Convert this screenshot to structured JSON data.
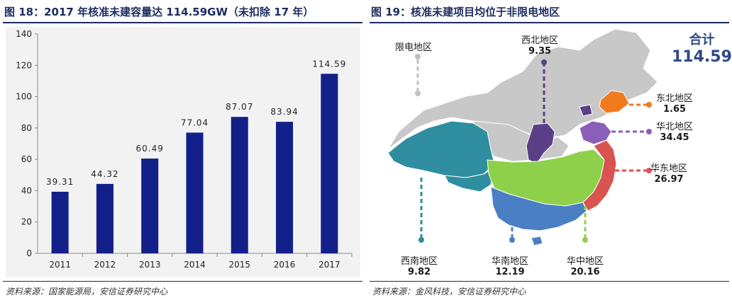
{
  "left": {
    "title": "图 18：2017 年核准未建容量达 114.59GW（未扣除 17 年）",
    "source": "资料来源：国家能源局，安信证券研究中心"
  },
  "right": {
    "title": "图 19：核准未建项目均位于非限电地区",
    "source": "资料来源：金风科技，安信证券研究中心",
    "total_label": "合计",
    "total_value": "114.59",
    "regions": [
      {
        "name": "限电地区",
        "value": "",
        "color": "#c8c8c8"
      },
      {
        "name": "西北地区",
        "value": "9.35",
        "color": "#5b3f86"
      },
      {
        "name": "东北地区",
        "value": "1.65",
        "color": "#f07a1c"
      },
      {
        "name": "华北地区",
        "value": "34.45",
        "color": "#8a5fb8"
      },
      {
        "name": "华东地区",
        "value": "26.97",
        "color": "#d9534f"
      },
      {
        "name": "华中地区",
        "value": "20.16",
        "color": "#8ed04a"
      },
      {
        "name": "华南地区",
        "value": "12.19",
        "color": "#4b7fc4"
      },
      {
        "name": "西南地区",
        "value": "9.82",
        "color": "#2e8ea0"
      }
    ]
  },
  "chart_data": {
    "type": "bar",
    "categories": [
      "2011",
      "2012",
      "2013",
      "2014",
      "2015",
      "2016",
      "2017"
    ],
    "values": [
      39.31,
      44.32,
      60.49,
      77.04,
      87.07,
      83.94,
      114.59
    ],
    "data_labels": [
      "39.31",
      "44.32",
      "60.49",
      "77.04",
      "87.07",
      "83.94",
      "114.59"
    ],
    "title": "",
    "xlabel": "",
    "ylabel": "",
    "ylim": [
      0,
      140
    ],
    "yticks": [
      0,
      20,
      40,
      60,
      80,
      100,
      120,
      140
    ],
    "grid": false,
    "legend": "none",
    "bar_color": "#13208a"
  }
}
